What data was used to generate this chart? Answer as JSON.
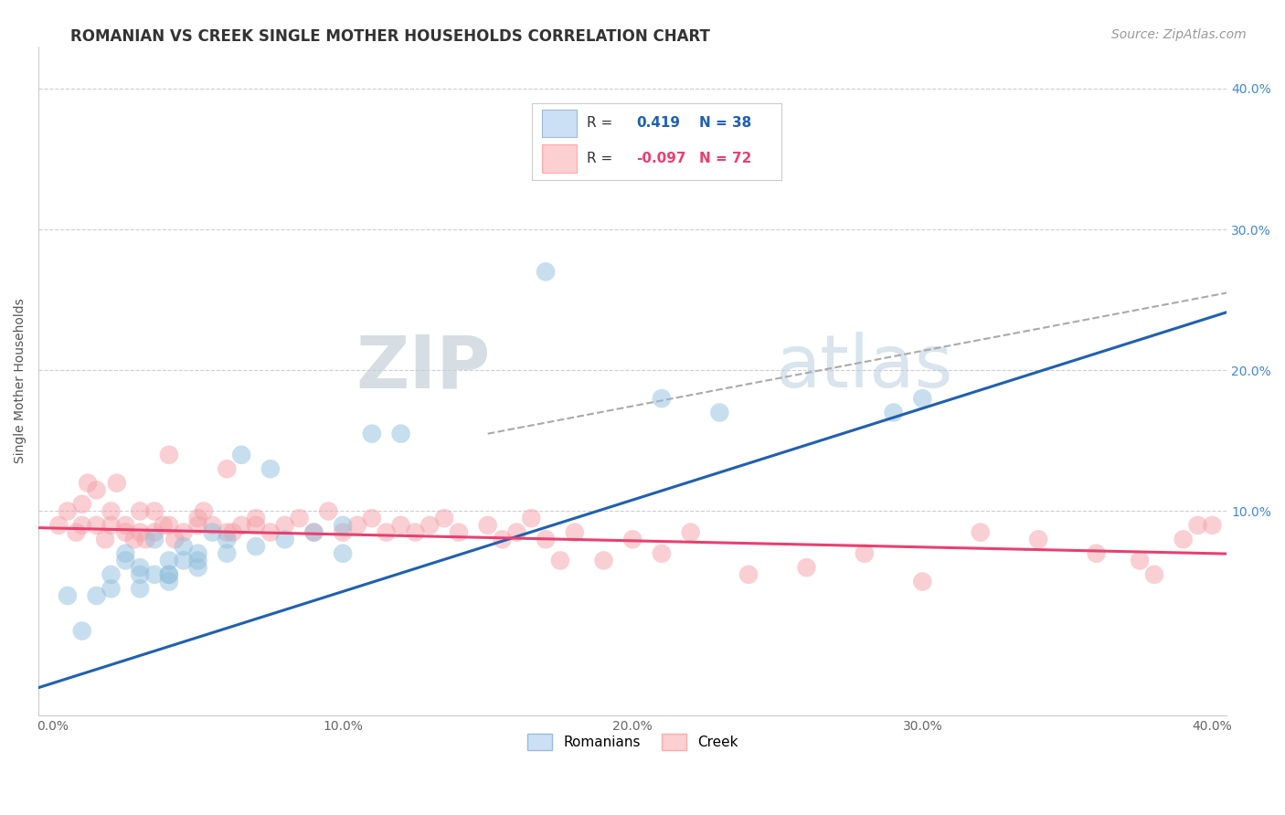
{
  "title": "ROMANIAN VS CREEK SINGLE MOTHER HOUSEHOLDS CORRELATION CHART",
  "source": "Source: ZipAtlas.com",
  "ylabel": "Single Mother Households",
  "xlim": [
    -0.005,
    0.405
  ],
  "ylim": [
    -0.045,
    0.43
  ],
  "ytick_positions": [
    0.1,
    0.2,
    0.3,
    0.4
  ],
  "ytick_labels": [
    "10.0%",
    "20.0%",
    "30.0%",
    "40.0%"
  ],
  "xtick_positions": [
    0.0,
    0.1,
    0.2,
    0.3,
    0.4
  ],
  "xtick_labels": [
    "0.0%",
    "10.0%",
    "20.0%",
    "30.0%",
    "40.0%"
  ],
  "romanian_color": "#90bfde",
  "creek_color": "#f4a0a8",
  "romanian_line_color": "#2060b0",
  "creek_line_color": "#e84070",
  "trend_line_color": "#aaaaaa",
  "background_color": "#ffffff",
  "grid_color": "#ccccdd",
  "watermark_zip": "ZIP",
  "watermark_atlas": "atlas",
  "legend_box_color_romanian": "#cce0f5",
  "legend_box_color_creek": "#fcd0d0",
  "title_color": "#333333",
  "right_axis_color": "#4488cc",
  "romanian_scatter_x": [
    0.005,
    0.01,
    0.015,
    0.02,
    0.02,
    0.025,
    0.025,
    0.03,
    0.03,
    0.03,
    0.035,
    0.035,
    0.04,
    0.04,
    0.04,
    0.04,
    0.045,
    0.045,
    0.05,
    0.05,
    0.05,
    0.055,
    0.06,
    0.06,
    0.065,
    0.07,
    0.075,
    0.08,
    0.09,
    0.1,
    0.1,
    0.11,
    0.12,
    0.17,
    0.21,
    0.23,
    0.29,
    0.3
  ],
  "romanian_scatter_y": [
    0.04,
    0.015,
    0.04,
    0.055,
    0.045,
    0.065,
    0.07,
    0.06,
    0.055,
    0.045,
    0.055,
    0.08,
    0.055,
    0.05,
    0.065,
    0.055,
    0.065,
    0.075,
    0.07,
    0.065,
    0.06,
    0.085,
    0.07,
    0.08,
    0.14,
    0.075,
    0.13,
    0.08,
    0.085,
    0.07,
    0.09,
    0.155,
    0.155,
    0.27,
    0.18,
    0.17,
    0.17,
    0.18
  ],
  "creek_scatter_x": [
    0.002,
    0.005,
    0.008,
    0.01,
    0.01,
    0.012,
    0.015,
    0.015,
    0.018,
    0.02,
    0.02,
    0.022,
    0.025,
    0.025,
    0.028,
    0.03,
    0.03,
    0.032,
    0.035,
    0.035,
    0.038,
    0.04,
    0.04,
    0.042,
    0.045,
    0.05,
    0.05,
    0.052,
    0.055,
    0.06,
    0.06,
    0.062,
    0.065,
    0.07,
    0.07,
    0.075,
    0.08,
    0.085,
    0.09,
    0.095,
    0.1,
    0.105,
    0.11,
    0.115,
    0.12,
    0.125,
    0.13,
    0.135,
    0.14,
    0.15,
    0.155,
    0.16,
    0.165,
    0.17,
    0.175,
    0.18,
    0.19,
    0.2,
    0.21,
    0.22,
    0.24,
    0.26,
    0.28,
    0.3,
    0.32,
    0.34,
    0.36,
    0.375,
    0.38,
    0.39,
    0.395,
    0.4
  ],
  "creek_scatter_y": [
    0.09,
    0.1,
    0.085,
    0.09,
    0.105,
    0.12,
    0.115,
    0.09,
    0.08,
    0.1,
    0.09,
    0.12,
    0.085,
    0.09,
    0.08,
    0.1,
    0.085,
    0.08,
    0.1,
    0.085,
    0.09,
    0.09,
    0.14,
    0.08,
    0.085,
    0.09,
    0.095,
    0.1,
    0.09,
    0.085,
    0.13,
    0.085,
    0.09,
    0.09,
    0.095,
    0.085,
    0.09,
    0.095,
    0.085,
    0.1,
    0.085,
    0.09,
    0.095,
    0.085,
    0.09,
    0.085,
    0.09,
    0.095,
    0.085,
    0.09,
    0.08,
    0.085,
    0.095,
    0.08,
    0.065,
    0.085,
    0.065,
    0.08,
    0.07,
    0.085,
    0.055,
    0.06,
    0.07,
    0.05,
    0.085,
    0.08,
    0.07,
    0.065,
    0.055,
    0.08,
    0.09,
    0.09
  ],
  "title_fontsize": 12,
  "tick_fontsize": 10,
  "source_fontsize": 10,
  "legend_fontsize": 11,
  "scatter_size": 220,
  "scatter_alpha": 0.5
}
